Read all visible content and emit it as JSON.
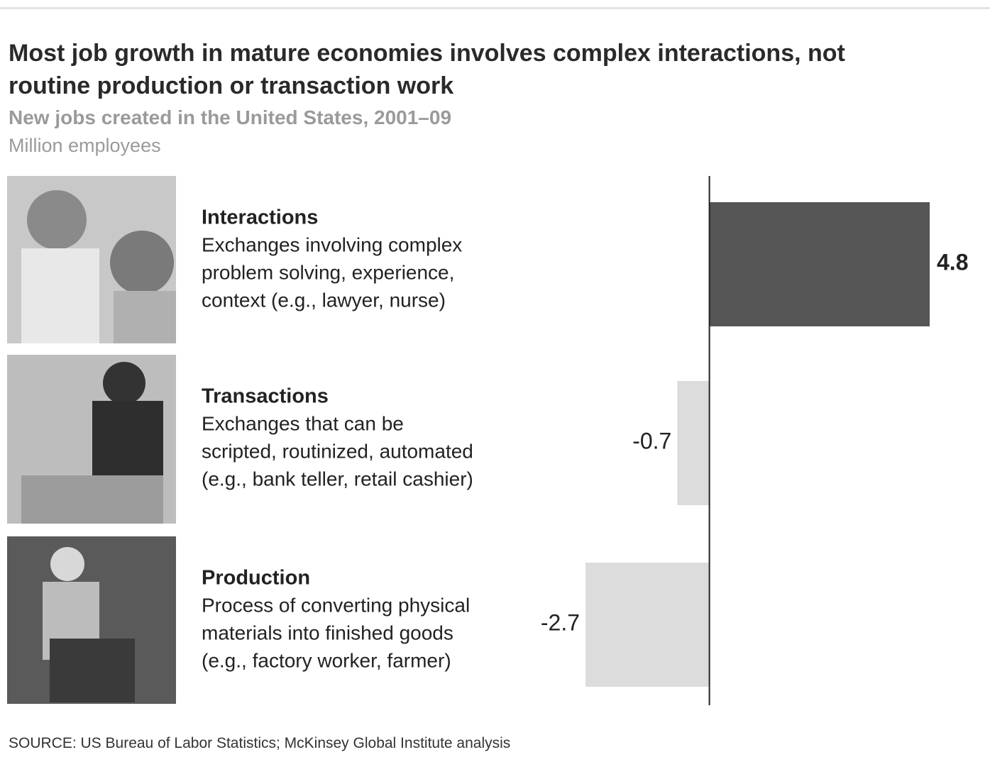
{
  "chart_data": {
    "type": "bar",
    "title": "Most job growth in mature economies involves complex interactions, not routine production or transaction work",
    "subtitle": "New jobs created in the United States, 2001–09",
    "unit_label": "Million employees",
    "categories": [
      "Interactions",
      "Transactions",
      "Production"
    ],
    "descriptions": [
      [
        "Exchanges involving complex",
        "problem solving, experience,",
        "context (e.g., lawyer, nurse)"
      ],
      [
        "Exchanges that can be",
        "scripted, routinized, automated",
        "(e.g., bank teller, retail cashier)"
      ],
      [
        "Process of converting physical",
        "materials into finished goods",
        "(e.g., factory worker, farmer)"
      ]
    ],
    "values": [
      4.8,
      -0.7,
      -2.7
    ],
    "colors": [
      "#555555",
      "#dcdcdc",
      "#dcdcdc"
    ],
    "source": "SOURCE: US Bureau of Labor Statistics; McKinsey Global Institute analysis"
  }
}
